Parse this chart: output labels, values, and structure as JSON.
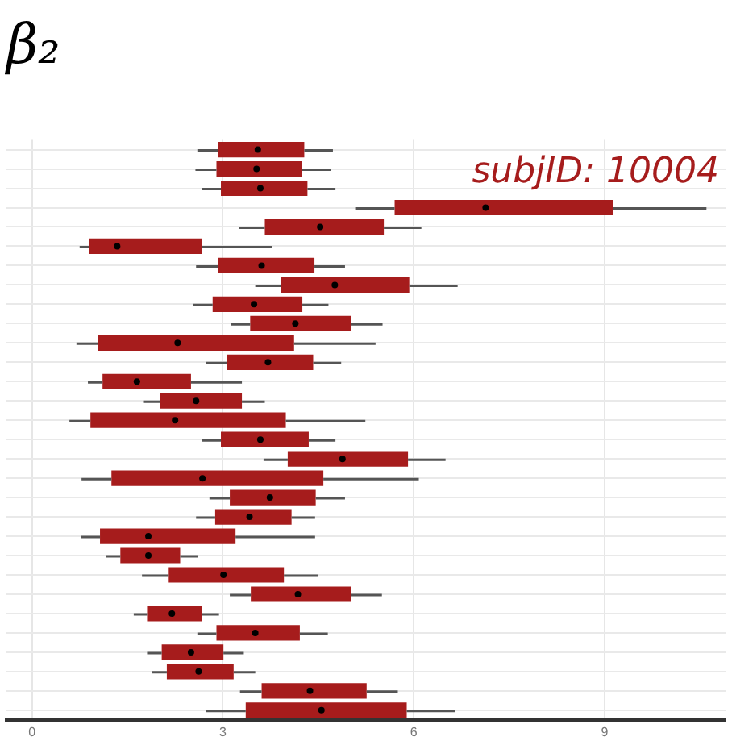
{
  "chart_data": {
    "type": "box",
    "orientation": "horizontal",
    "title": "β₂",
    "annotations": [
      "subjID: 10004"
    ],
    "categories": [
      null,
      null,
      null,
      null,
      null,
      null,
      null,
      null,
      null,
      null,
      null,
      null,
      null,
      null,
      null,
      null,
      null,
      null,
      null,
      null,
      null,
      null,
      null,
      null,
      null,
      null,
      null,
      null,
      null,
      null
    ],
    "color": "#a61c1c",
    "boxes": [
      {
        "low": 2.6,
        "q1": 2.92,
        "median": 3.55,
        "q3": 4.28,
        "high": 4.73
      },
      {
        "low": 2.57,
        "q1": 2.9,
        "median": 3.53,
        "q3": 4.24,
        "high": 4.7
      },
      {
        "low": 2.67,
        "q1": 2.97,
        "median": 3.59,
        "q3": 4.33,
        "high": 4.77
      },
      {
        "low": 5.08,
        "q1": 5.7,
        "median": 7.13,
        "q3": 9.13,
        "high": 10.6
      },
      {
        "low": 3.26,
        "q1": 3.66,
        "median": 4.53,
        "q3": 5.53,
        "high": 6.12
      },
      {
        "low": 0.75,
        "q1": 0.9,
        "median": 1.34,
        "q3": 2.67,
        "high": 3.78
      },
      {
        "low": 2.58,
        "q1": 2.92,
        "median": 3.61,
        "q3": 4.44,
        "high": 4.92
      },
      {
        "low": 3.51,
        "q1": 3.91,
        "median": 4.76,
        "q3": 5.93,
        "high": 6.69
      },
      {
        "low": 2.53,
        "q1": 2.84,
        "median": 3.49,
        "q3": 4.25,
        "high": 4.66
      },
      {
        "low": 3.13,
        "q1": 3.43,
        "median": 4.14,
        "q3": 5.01,
        "high": 5.51
      },
      {
        "low": 0.7,
        "q1": 1.04,
        "median": 2.29,
        "q3": 4.12,
        "high": 5.4
      },
      {
        "low": 2.74,
        "q1": 3.06,
        "median": 3.71,
        "q3": 4.42,
        "high": 4.86
      },
      {
        "low": 0.88,
        "q1": 1.11,
        "median": 1.65,
        "q3": 2.5,
        "high": 3.3
      },
      {
        "low": 1.76,
        "q1": 2.01,
        "median": 2.58,
        "q3": 3.3,
        "high": 3.66
      },
      {
        "low": 0.59,
        "q1": 0.92,
        "median": 2.25,
        "q3": 3.99,
        "high": 5.24
      },
      {
        "low": 2.67,
        "q1": 2.97,
        "median": 3.59,
        "q3": 4.35,
        "high": 4.77
      },
      {
        "low": 3.64,
        "q1": 4.02,
        "median": 4.88,
        "q3": 5.91,
        "high": 6.5
      },
      {
        "low": 0.78,
        "q1": 1.25,
        "median": 2.68,
        "q3": 4.58,
        "high": 6.08
      },
      {
        "low": 2.79,
        "q1": 3.11,
        "median": 3.74,
        "q3": 4.46,
        "high": 4.92
      },
      {
        "low": 2.58,
        "q1": 2.88,
        "median": 3.42,
        "q3": 4.08,
        "high": 4.45
      },
      {
        "low": 0.77,
        "q1": 1.07,
        "median": 1.83,
        "q3": 3.2,
        "high": 4.45
      },
      {
        "low": 1.17,
        "q1": 1.39,
        "median": 1.83,
        "q3": 2.33,
        "high": 2.61
      },
      {
        "low": 1.73,
        "q1": 2.15,
        "median": 3.01,
        "q3": 3.96,
        "high": 4.49
      },
      {
        "low": 3.11,
        "q1": 3.44,
        "median": 4.18,
        "q3": 5.01,
        "high": 5.5
      },
      {
        "low": 1.6,
        "q1": 1.81,
        "median": 2.2,
        "q3": 2.67,
        "high": 2.94
      },
      {
        "low": 2.6,
        "q1": 2.9,
        "median": 3.51,
        "q3": 4.21,
        "high": 4.65
      },
      {
        "low": 1.81,
        "q1": 2.04,
        "median": 2.5,
        "q3": 3.01,
        "high": 3.33
      },
      {
        "low": 1.89,
        "q1": 2.12,
        "median": 2.62,
        "q3": 3.17,
        "high": 3.51
      },
      {
        "low": 3.27,
        "q1": 3.61,
        "median": 4.37,
        "q3": 5.26,
        "high": 5.75
      },
      {
        "low": 2.74,
        "q1": 3.36,
        "median": 4.55,
        "q3": 5.89,
        "high": 6.65
      }
    ],
    "xlim": [
      -0.4,
      10.9
    ],
    "xticks": [
      0,
      3,
      6,
      9
    ],
    "grid": true,
    "legend": false
  }
}
